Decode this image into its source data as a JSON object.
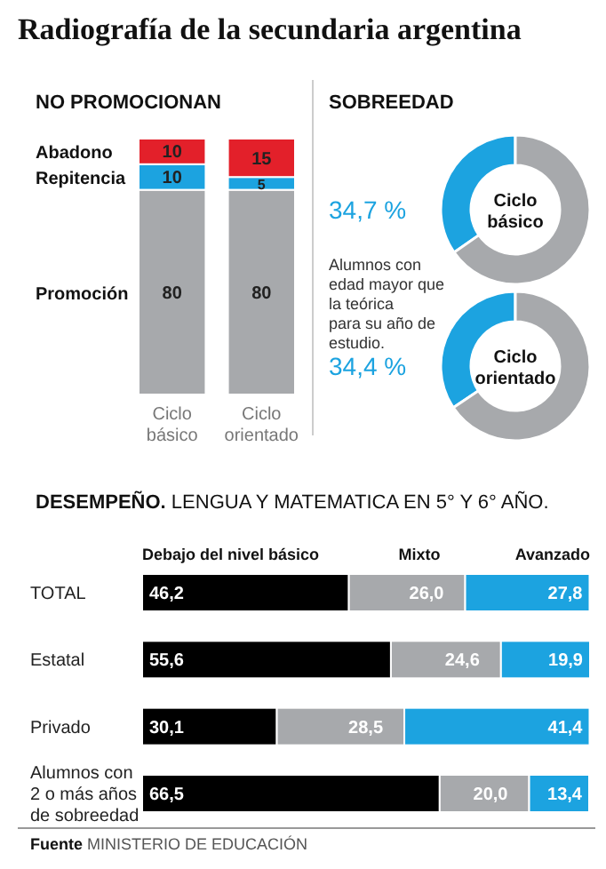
{
  "chart_data": [
    {
      "type": "bar",
      "title": "Radiografía de la secundaria argentina",
      "subtitle": "NO PROMOCIONAN",
      "categories": [
        "Ciclo básico",
        "Ciclo orientado"
      ],
      "stacked": true,
      "data_labels": true,
      "legend": "left",
      "series": [
        {
          "name": "Promoción",
          "color": "#a7a9ac",
          "values": [
            80,
            80
          ]
        },
        {
          "name": "Repitencia",
          "color": "#1ca3e0",
          "values": [
            10,
            5
          ]
        },
        {
          "name": "Abadono",
          "color": "#e3202a",
          "values": [
            10,
            15
          ]
        }
      ]
    },
    {
      "type": "donut",
      "title": "SOBREEDAD",
      "categories": [
        null,
        null
      ],
      "values": [
        34.7,
        65.3
      ],
      "colors": [
        "#1ca3e0",
        "#a7a9ac"
      ],
      "value_labels": [
        "34,7 %",
        null
      ],
      "annotations": [
        "Ciclo básico",
        "Alumnos con edad mayor que la teórica para su año de estudio."
      ]
    },
    {
      "type": "donut",
      "categories": [
        null,
        null
      ],
      "values": [
        34.4,
        65.6
      ],
      "colors": [
        "#1ca3e0",
        "#a7a9ac"
      ],
      "value_labels": [
        "34,4 %",
        null
      ],
      "annotations": [
        "Ciclo orientado"
      ]
    },
    {
      "type": "bar",
      "orientation": "horizontal",
      "stacked": true,
      "title": "DESEMPEÑO.",
      "subtitle": "LENGUA Y MATEMATICA EN 5° Y 6° AÑO.",
      "legend": "top",
      "categories": [
        "TOTAL",
        "Estatal",
        "Privado",
        "Alumnos con 2 o más años de sobreedad"
      ],
      "series": [
        {
          "name": "Debajo del nivel básico",
          "color": "#000000",
          "values": [
            46.2,
            55.6,
            30.1,
            66.5
          ],
          "value_labels": [
            "46,2",
            "55,6",
            "30,1",
            "66,5"
          ]
        },
        {
          "name": "Mixto",
          "color": "#a7a9ac",
          "values": [
            26.0,
            24.6,
            28.5,
            20.0
          ],
          "value_labels": [
            "26,0",
            "24,6",
            "28,5",
            "20,0"
          ]
        },
        {
          "name": "Avanzado",
          "color": "#1ca3e0",
          "values": [
            27.8,
            19.9,
            41.4,
            13.4
          ],
          "value_labels": [
            "27,8",
            "19,9",
            "41,4",
            "13,4"
          ]
        }
      ],
      "annotations": [
        "Fuente MINISTERIO DE EDUCACIÓN"
      ]
    }
  ]
}
